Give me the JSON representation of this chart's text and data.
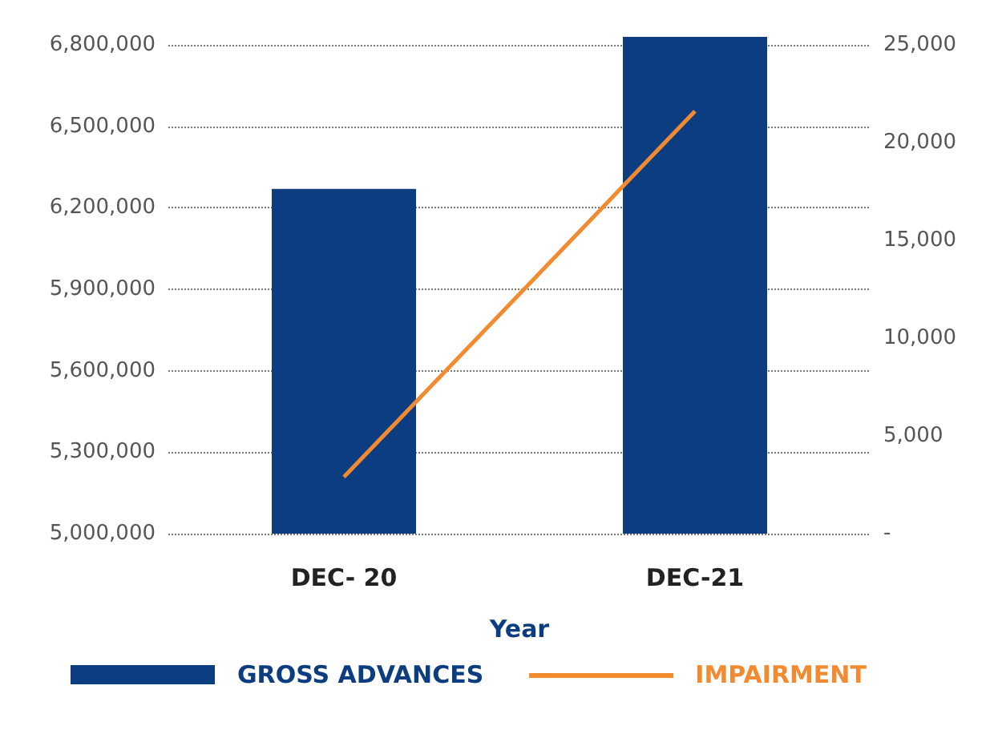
{
  "chart_data": {
    "type": "bar",
    "xlabel": "Year",
    "categories": [
      "DEC- 20",
      "DEC-21"
    ],
    "series": [
      {
        "name": "GROSS ADVANCES",
        "type": "bar",
        "color": "#0b3d80",
        "values": [
          6270000,
          6830000
        ]
      },
      {
        "name": "IMPAIRMENT",
        "type": "line",
        "axis": "y2",
        "color": "#f28a30",
        "values": [
          2900,
          21600
        ]
      }
    ],
    "ylim": [
      5000000,
      6830000
    ],
    "yticks": [
      {
        "value": 5000000,
        "label": "5,000,000"
      },
      {
        "value": 5300000,
        "label": "5,300,000"
      },
      {
        "value": 5600000,
        "label": "5,600,000"
      },
      {
        "value": 5900000,
        "label": "5,900,000"
      },
      {
        "value": 6200000,
        "label": "6,200,000"
      },
      {
        "value": 6500000,
        "label": "6,500,000"
      },
      {
        "value": 6800000,
        "label": "6,800,000"
      }
    ],
    "y2lim": [
      0,
      25400
    ],
    "y2ticks": [
      {
        "value": 0,
        "label": "-"
      },
      {
        "value": 5000,
        "label": "5,000"
      },
      {
        "value": 10000,
        "label": "10,000"
      },
      {
        "value": 15000,
        "label": "15,000"
      },
      {
        "value": 20000,
        "label": "20,000"
      },
      {
        "value": 25000,
        "label": "25,000"
      }
    ],
    "grid": "y",
    "legend": "bottom",
    "marker": "none",
    "line_style": "solid"
  }
}
